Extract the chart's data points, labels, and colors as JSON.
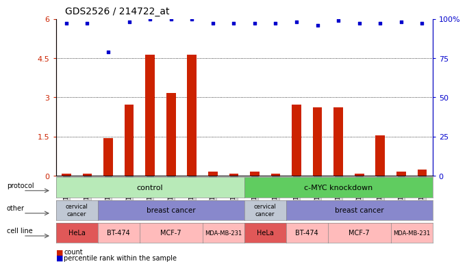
{
  "title": "GDS2526 / 214722_at",
  "samples": [
    "GSM136095",
    "GSM136097",
    "GSM136079",
    "GSM136081",
    "GSM136083",
    "GSM136085",
    "GSM136087",
    "GSM136089",
    "GSM136091",
    "GSM136096",
    "GSM136098",
    "GSM136080",
    "GSM136082",
    "GSM136084",
    "GSM136086",
    "GSM136088",
    "GSM136090",
    "GSM136092"
  ],
  "count_values": [
    0.1,
    0.1,
    1.45,
    2.72,
    4.62,
    3.18,
    4.62,
    0.16,
    0.1,
    0.16,
    0.1,
    2.72,
    2.62,
    2.62,
    0.1,
    1.55,
    0.16,
    0.25
  ],
  "percentile_values": [
    97,
    97,
    79,
    98,
    100,
    100,
    100,
    97,
    97,
    97,
    97,
    98,
    96,
    99,
    97,
    97,
    98,
    97
  ],
  "bar_color": "#cc2200",
  "dot_color": "#0000cc",
  "ylim_left": [
    0,
    6
  ],
  "ylim_right": [
    0,
    100
  ],
  "yticks_left": [
    0,
    1.5,
    3.0,
    4.5,
    6.0
  ],
  "ytick_labels_left": [
    "0",
    "1.5",
    "3",
    "4.5",
    "6"
  ],
  "yticks_right": [
    0,
    25,
    50,
    75,
    100
  ],
  "ytick_labels_right": [
    "0",
    "25",
    "50",
    "75",
    "100%"
  ],
  "protocol_color_control": "#b8eab8",
  "protocol_color_knockdown": "#60cc60",
  "other_color_cervical": "#c0c8d4",
  "other_color_breast": "#8888cc",
  "cell_line_hela_color": "#e05858",
  "cell_line_other_color": "#ffbbbb",
  "legend_count": "count",
  "legend_percentile": "percentile rank within the sample",
  "row_labels": [
    "protocol",
    "other",
    "cell line"
  ],
  "background_color": "#ffffff"
}
